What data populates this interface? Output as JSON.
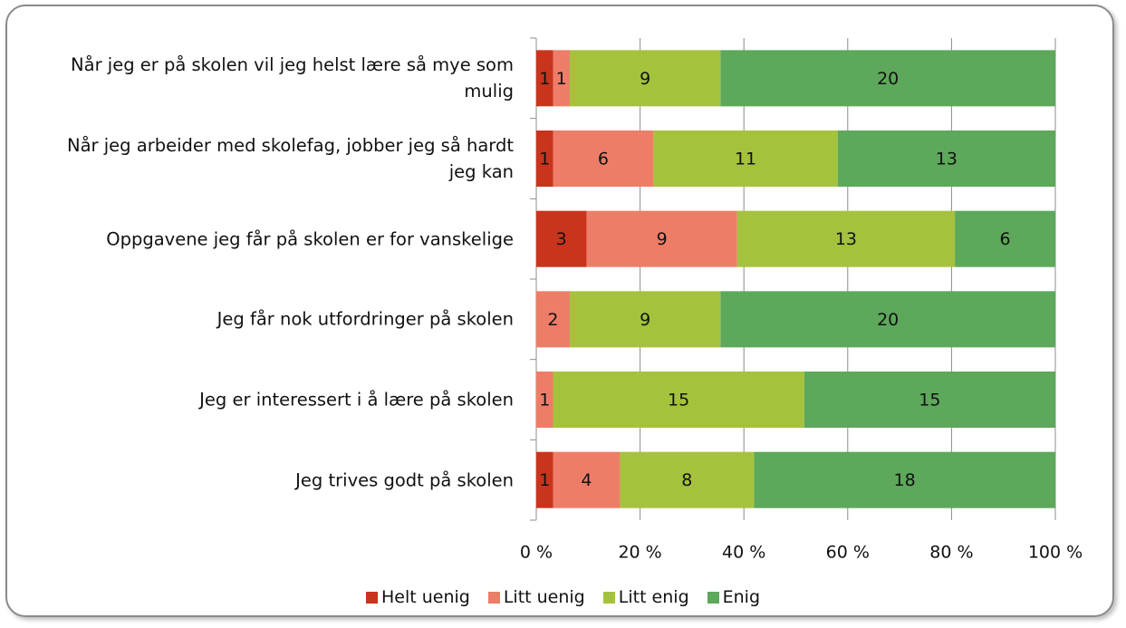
{
  "chart_data": {
    "type": "bar",
    "orientation": "horizontal",
    "stacked": "percent",
    "categories": [
      "Når jeg er på skolen vil jeg helst lære så mye som mulig",
      "Når jeg arbeider med skolefag, jobber jeg så hardt jeg kan",
      "Oppgavene jeg får på skolen er for vanskelige",
      "Jeg får nok utfordringer på skolen",
      "Jeg er interessert i å lære på skolen",
      "Jeg trives godt på skolen"
    ],
    "series": [
      {
        "name": "Helt uenig",
        "color": "#c9341c",
        "values": [
          1,
          1,
          3,
          null,
          null,
          1
        ]
      },
      {
        "name": "Litt uenig",
        "color": "#ee7d68",
        "values": [
          1,
          6,
          9,
          2,
          1,
          4
        ]
      },
      {
        "name": "Litt enig",
        "color": "#a5c23d",
        "values": [
          9,
          11,
          13,
          9,
          15,
          8
        ]
      },
      {
        "name": "Enig",
        "color": "#5da85b",
        "values": [
          20,
          13,
          6,
          20,
          15,
          18
        ]
      }
    ],
    "xlim": [
      0,
      100
    ],
    "xticks": [
      {
        "value": 0,
        "label": "0 %"
      },
      {
        "value": 20,
        "label": "20 %"
      },
      {
        "value": 40,
        "label": "40 %"
      },
      {
        "value": 60,
        "label": "60 %"
      },
      {
        "value": 80,
        "label": "80 %"
      },
      {
        "value": 100,
        "label": "100 %"
      }
    ],
    "grid": true,
    "legend": "bottom"
  }
}
